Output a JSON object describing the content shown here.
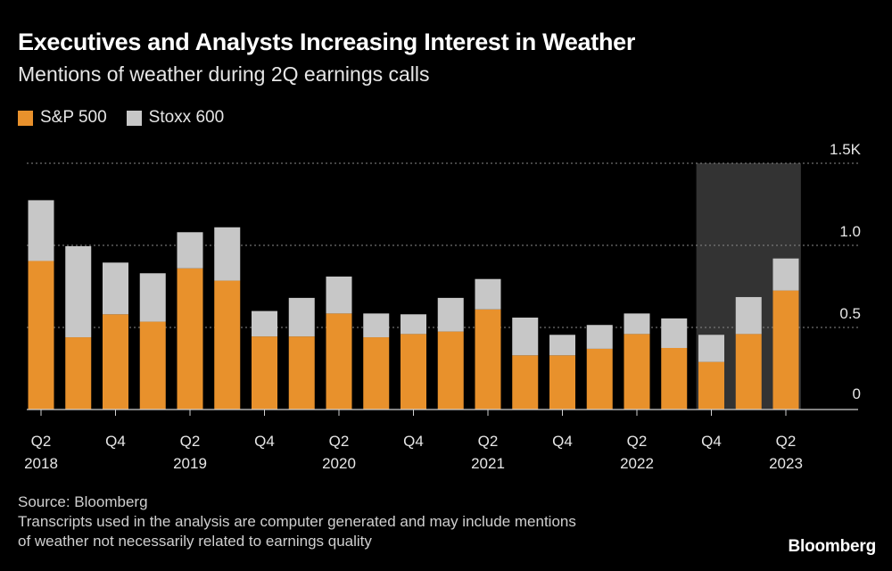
{
  "header": {
    "title": "Executives and Analysts Increasing Interest in Weather",
    "subtitle": "Mentions of weather during 2Q earnings calls"
  },
  "colors": {
    "sp500": "#e8912c",
    "stoxx600": "#c7c7c7",
    "highlight": "#333333",
    "grid": "#8a8a8a"
  },
  "chart_data": {
    "type": "bar",
    "stacked": true,
    "title": "Executives and Analysts Increasing Interest in Weather",
    "subtitle": "Mentions of weather during 2Q earnings calls",
    "categories": [
      "Q2 2018",
      "Q3 2018",
      "Q4 2018",
      "Q1 2019",
      "Q2 2019",
      "Q3 2019",
      "Q4 2019",
      "Q1 2020",
      "Q2 2020",
      "Q3 2020",
      "Q4 2020",
      "Q1 2021",
      "Q2 2021",
      "Q3 2021",
      "Q4 2021",
      "Q1 2022",
      "Q2 2022",
      "Q3 2022",
      "Q4 2022",
      "Q1 2023",
      "Q2 2023"
    ],
    "tick_labels": [
      {
        "index": 0,
        "quarter": "Q2",
        "year": "2018"
      },
      {
        "index": 2,
        "quarter": "Q4",
        "year": ""
      },
      {
        "index": 4,
        "quarter": "Q2",
        "year": "2019"
      },
      {
        "index": 6,
        "quarter": "Q4",
        "year": ""
      },
      {
        "index": 8,
        "quarter": "Q2",
        "year": "2020"
      },
      {
        "index": 10,
        "quarter": "Q4",
        "year": ""
      },
      {
        "index": 12,
        "quarter": "Q2",
        "year": "2021"
      },
      {
        "index": 14,
        "quarter": "Q4",
        "year": ""
      },
      {
        "index": 16,
        "quarter": "Q2",
        "year": "2022"
      },
      {
        "index": 18,
        "quarter": "Q4",
        "year": ""
      },
      {
        "index": 20,
        "quarter": "Q2",
        "year": "2023"
      }
    ],
    "series": [
      {
        "name": "S&P 500",
        "values": [
          905,
          440,
          580,
          535,
          860,
          785,
          445,
          445,
          585,
          440,
          460,
          475,
          610,
          330,
          330,
          370,
          460,
          375,
          290,
          460,
          725
        ]
      },
      {
        "name": "Stoxx 600",
        "values": [
          370,
          555,
          315,
          295,
          220,
          325,
          155,
          235,
          225,
          145,
          120,
          205,
          185,
          230,
          125,
          145,
          125,
          180,
          165,
          225,
          195
        ]
      }
    ],
    "highlight_range": [
      "Q4 2022",
      "Q2 2023"
    ],
    "yticks": [
      0,
      0.5,
      1.0,
      1.5
    ],
    "ytick_labels": [
      "0",
      "0.5",
      "1.0",
      "1.5K"
    ],
    "ylim": [
      0,
      1500
    ],
    "xlabel": "",
    "ylabel": ""
  },
  "legend": [
    {
      "label": "S&P 500",
      "color": "#e8912c"
    },
    {
      "label": "Stoxx 600",
      "color": "#c7c7c7"
    }
  ],
  "footer": {
    "source": "Source: Bloomberg",
    "note_line1": "Transcripts used in the analysis are computer generated and may include mentions",
    "note_line2": "of weather not necessarily related to earnings quality",
    "brand": "Bloomberg"
  }
}
